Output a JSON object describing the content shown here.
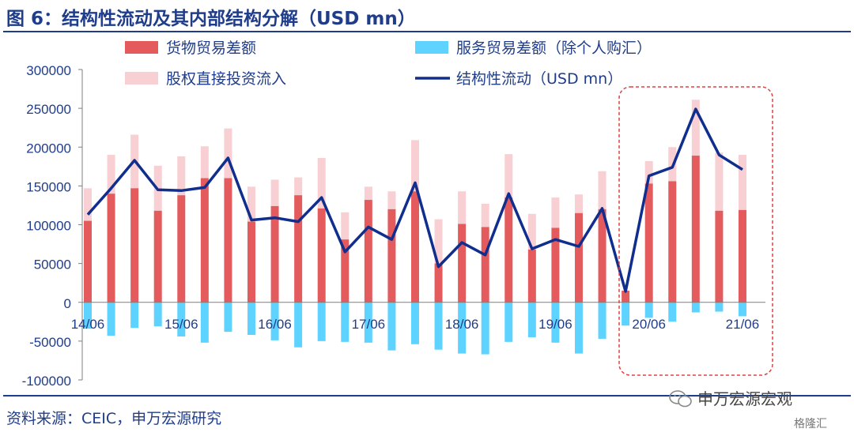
{
  "title": "图 6：结构性流动及其内部结构分解（USD mn）",
  "source": "资料来源：CEIC，申万宏源研究",
  "watermark": "申万宏源宏观",
  "logo": "格隆汇",
  "colors": {
    "goods": "#e45b5d",
    "services": "#5fd3ff",
    "fdi": "#f8cfd3",
    "line": "#102e8e",
    "highlight": "#e04040",
    "axis_text": "#1f3d8a"
  },
  "chart_data": {
    "type": "bar",
    "ylim": [
      -100000,
      300000
    ],
    "yticks": [
      300000,
      250000,
      200000,
      150000,
      100000,
      50000,
      0,
      -50000,
      -100000
    ],
    "xlabels": [
      {
        "index": 0,
        "label": "14/06"
      },
      {
        "index": 4,
        "label": "15/06"
      },
      {
        "index": 8,
        "label": "16/06"
      },
      {
        "index": 12,
        "label": "17/06"
      },
      {
        "index": 16,
        "label": "18/06"
      },
      {
        "index": 20,
        "label": "19/06"
      },
      {
        "index": 24,
        "label": "20/06"
      },
      {
        "index": 28,
        "label": "21/06"
      }
    ],
    "series": [
      {
        "name": "货物贸易差额",
        "kind": "bar",
        "values": [
          105000,
          140000,
          147000,
          118000,
          138000,
          160000,
          160000,
          104000,
          124000,
          138000,
          121000,
          81000,
          132000,
          120000,
          143000,
          50000,
          101000,
          97000,
          135000,
          68000,
          96000,
          115000,
          120000,
          15000,
          153000,
          156000,
          189000,
          118000,
          119000
        ]
      },
      {
        "name": "服务贸易差额（除个人购汇）",
        "kind": "bar",
        "values": [
          -34000,
          -43000,
          -33000,
          -31000,
          -44000,
          -52000,
          -38000,
          -42000,
          -49000,
          -58000,
          -50000,
          -51000,
          -52000,
          -62000,
          -54000,
          -61000,
          -66000,
          -67000,
          -51000,
          -45000,
          -52000,
          -66000,
          -47000,
          -30000,
          -20000,
          -25000,
          -13000,
          -12000,
          -18000
        ]
      },
      {
        "name": "股权直接投资流入",
        "kind": "bar",
        "values": [
          42000,
          50000,
          69000,
          58000,
          50000,
          41000,
          64000,
          45000,
          34000,
          23000,
          65000,
          35000,
          17000,
          23000,
          66000,
          57000,
          42000,
          30000,
          56000,
          46000,
          39000,
          24000,
          49000,
          0,
          29000,
          44000,
          72000,
          75000,
          71000
        ]
      },
      {
        "name": "结构性流动（USD mn）",
        "kind": "line",
        "values": [
          113000,
          147000,
          183000,
          145000,
          144000,
          148000,
          186000,
          106000,
          109000,
          104000,
          135000,
          65000,
          97000,
          81000,
          154000,
          46000,
          77000,
          61000,
          140000,
          69000,
          81000,
          72000,
          121000,
          14000,
          163000,
          174000,
          249000,
          190000,
          171000
        ]
      }
    ],
    "legend": "top",
    "grid": false
  }
}
